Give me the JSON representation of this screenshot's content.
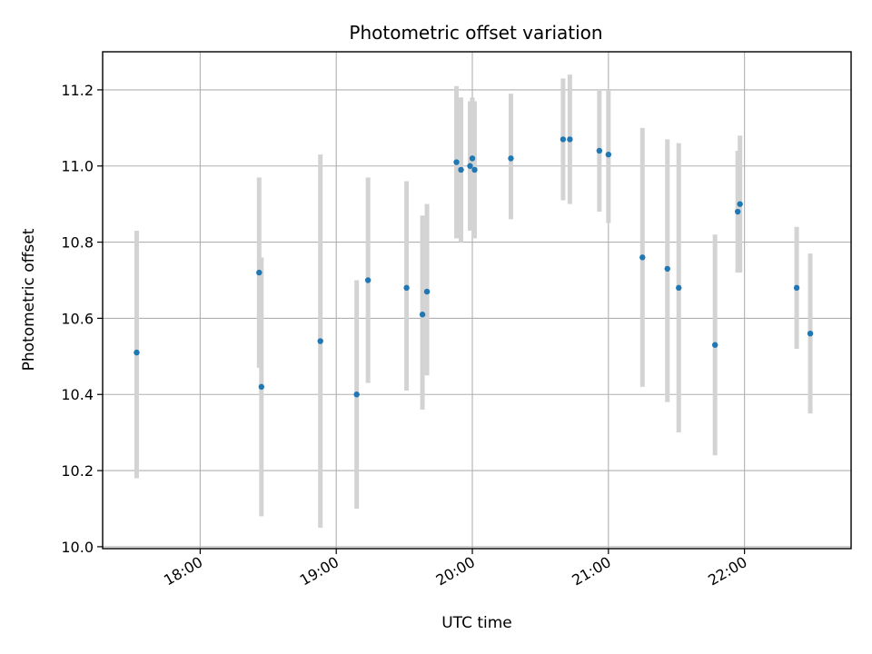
{
  "chart_data": {
    "type": "scatter",
    "title": "Photometric offset variation",
    "xlabel": "UTC time",
    "ylabel": "Photometric offset",
    "x_axis_kind": "time",
    "xlim": [
      "17:17",
      "22:47"
    ],
    "ylim": [
      9.995,
      11.3
    ],
    "grid": true,
    "legend": "none",
    "x_ticks": [
      "18:00",
      "19:00",
      "20:00",
      "21:00",
      "22:00"
    ],
    "y_ticks": [
      10.0,
      10.2,
      10.4,
      10.6,
      10.8,
      11.0,
      11.2
    ],
    "y_tick_labels": [
      "10.0",
      "10.2",
      "10.4",
      "10.6",
      "10.8",
      "11.0",
      "11.2"
    ],
    "colors": {
      "points": "#1f77b4",
      "errorbars": "#d3d3d3",
      "grid": "#b0b0b0"
    },
    "series": [
      {
        "points": [
          {
            "x": "17:32",
            "y": 10.51,
            "low": 10.18,
            "high": 10.83
          },
          {
            "x": "18:26",
            "y": 10.72,
            "low": 10.47,
            "high": 10.97
          },
          {
            "x": "18:27",
            "y": 10.42,
            "low": 10.08,
            "high": 10.76
          },
          {
            "x": "18:53",
            "y": 10.54,
            "low": 10.05,
            "high": 11.03
          },
          {
            "x": "19:09",
            "y": 10.4,
            "low": 10.1,
            "high": 10.7
          },
          {
            "x": "19:14",
            "y": 10.7,
            "low": 10.43,
            "high": 10.97
          },
          {
            "x": "19:31",
            "y": 10.68,
            "low": 10.41,
            "high": 10.96
          },
          {
            "x": "19:38",
            "y": 10.61,
            "low": 10.36,
            "high": 10.87
          },
          {
            "x": "19:40",
            "y": 10.67,
            "low": 10.45,
            "high": 10.9
          },
          {
            "x": "19:53",
            "y": 11.01,
            "low": 10.81,
            "high": 11.21
          },
          {
            "x": "19:55",
            "y": 10.99,
            "low": 10.8,
            "high": 11.18
          },
          {
            "x": "19:59",
            "y": 11.0,
            "low": 10.83,
            "high": 11.17
          },
          {
            "x": "20:00",
            "y": 11.02,
            "low": 10.85,
            "high": 11.18
          },
          {
            "x": "20:01",
            "y": 10.99,
            "low": 10.81,
            "high": 11.17
          },
          {
            "x": "20:17",
            "y": 11.02,
            "low": 10.86,
            "high": 11.19
          },
          {
            "x": "20:40",
            "y": 11.07,
            "low": 10.91,
            "high": 11.23
          },
          {
            "x": "20:43",
            "y": 11.07,
            "low": 10.9,
            "high": 11.24
          },
          {
            "x": "20:56",
            "y": 11.04,
            "low": 10.88,
            "high": 11.2
          },
          {
            "x": "21:00",
            "y": 11.03,
            "low": 10.85,
            "high": 11.2
          },
          {
            "x": "21:15",
            "y": 10.76,
            "low": 10.42,
            "high": 11.1
          },
          {
            "x": "21:26",
            "y": 10.73,
            "low": 10.38,
            "high": 11.07
          },
          {
            "x": "21:31",
            "y": 10.68,
            "low": 10.3,
            "high": 11.06
          },
          {
            "x": "21:47",
            "y": 10.53,
            "low": 10.24,
            "high": 10.82
          },
          {
            "x": "21:57",
            "y": 10.88,
            "low": 10.72,
            "high": 11.04
          },
          {
            "x": "21:58",
            "y": 10.9,
            "low": 10.72,
            "high": 11.08
          },
          {
            "x": "22:23",
            "y": 10.68,
            "low": 10.52,
            "high": 10.84
          },
          {
            "x": "22:29",
            "y": 10.56,
            "low": 10.35,
            "high": 10.77
          }
        ]
      }
    ]
  }
}
